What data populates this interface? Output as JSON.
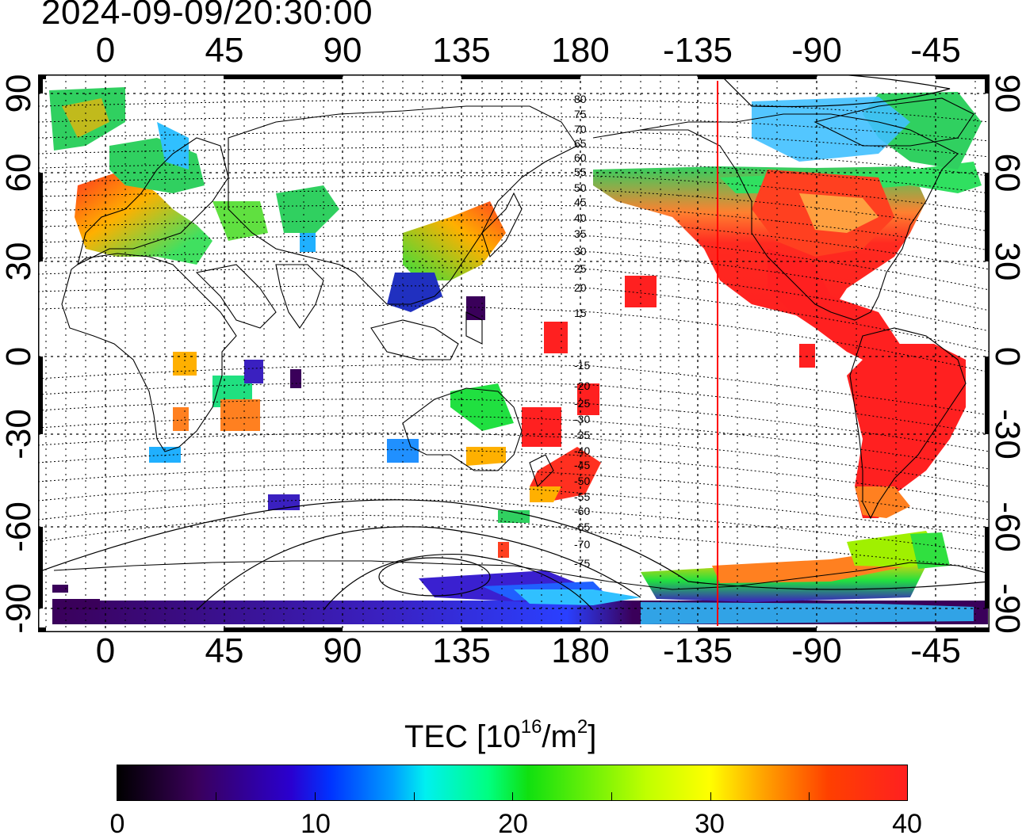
{
  "timestamp": "2024-09-09/20:30:00",
  "longitude_ticks": [
    "0",
    "45",
    "90",
    "135",
    "180",
    "-135",
    "-90",
    "-45"
  ],
  "latitude_ticks": [
    "90",
    "60",
    "30",
    "0",
    "-30",
    "-60",
    "-90"
  ],
  "contour_labels": [
    "80",
    "75",
    "70",
    "65",
    "60",
    "55",
    "50",
    "45",
    "40",
    "35",
    "30",
    "25",
    "20",
    "15",
    "-15",
    "-20",
    "-25",
    "-30",
    "-35",
    "-40",
    "-45",
    "-50",
    "-55",
    "-60",
    "-65",
    "-70",
    "-75"
  ],
  "colorbar": {
    "title_prefix": "TEC  [10",
    "title_exp1": "16",
    "title_mid": "/m",
    "title_exp2": "2",
    "title_suffix": "]",
    "labels": [
      "0",
      "10",
      "20",
      "30",
      "40"
    ],
    "min": 0,
    "max": 40
  },
  "colors": {
    "terminator_line": "#ff0000",
    "high_tec": "#ff2020",
    "polar_low_tec": "#3a005a"
  }
}
